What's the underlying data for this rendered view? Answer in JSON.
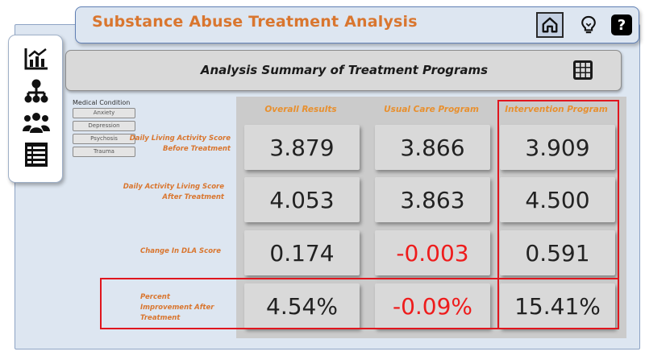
{
  "header": {
    "title": "Substance Abuse Treatment Analysis",
    "buttons": [
      {
        "name": "home",
        "icon": "home-icon",
        "active": true
      },
      {
        "name": "insights",
        "icon": "lightbulb-icon"
      },
      {
        "name": "help",
        "icon": "help-icon",
        "glyph": "?"
      }
    ]
  },
  "sidebar": {
    "items": [
      {
        "icon": "line-chart-icon"
      },
      {
        "icon": "hierarchy-icon"
      },
      {
        "icon": "people-group-icon"
      },
      {
        "icon": "table-list-icon"
      }
    ]
  },
  "summary": {
    "title": "Analysis Summary of Treatment Programs",
    "icon": "grid-icon"
  },
  "filter": {
    "title": "Medical Condition",
    "options": [
      "Anxiety",
      "Depression",
      "Psychosis",
      "Trauma"
    ]
  },
  "table": {
    "columns": [
      "Overall Results",
      "Usual Care Program",
      "Intervention Program"
    ],
    "rows": [
      {
        "label": "Daily Living Activity Score Before Treatment",
        "values": [
          "3.879",
          "3.866",
          "3.909"
        ]
      },
      {
        "label": "Daily Activity Living Score After Treatment",
        "values": [
          "4.053",
          "3.863",
          "4.500"
        ]
      },
      {
        "label": "Change In DLA Score",
        "values": [
          "0.174",
          "-0.003",
          "0.591"
        ]
      },
      {
        "label": "Percent Improvement After Treatment",
        "values": [
          "4.54%",
          "-0.09%",
          "15.41%"
        ]
      }
    ]
  },
  "colors": {
    "accent_orange": "#d9762f",
    "negative_red": "#ee1c1c",
    "highlight_red": "#e0161e",
    "canvas_blue": "#dde6f1"
  }
}
